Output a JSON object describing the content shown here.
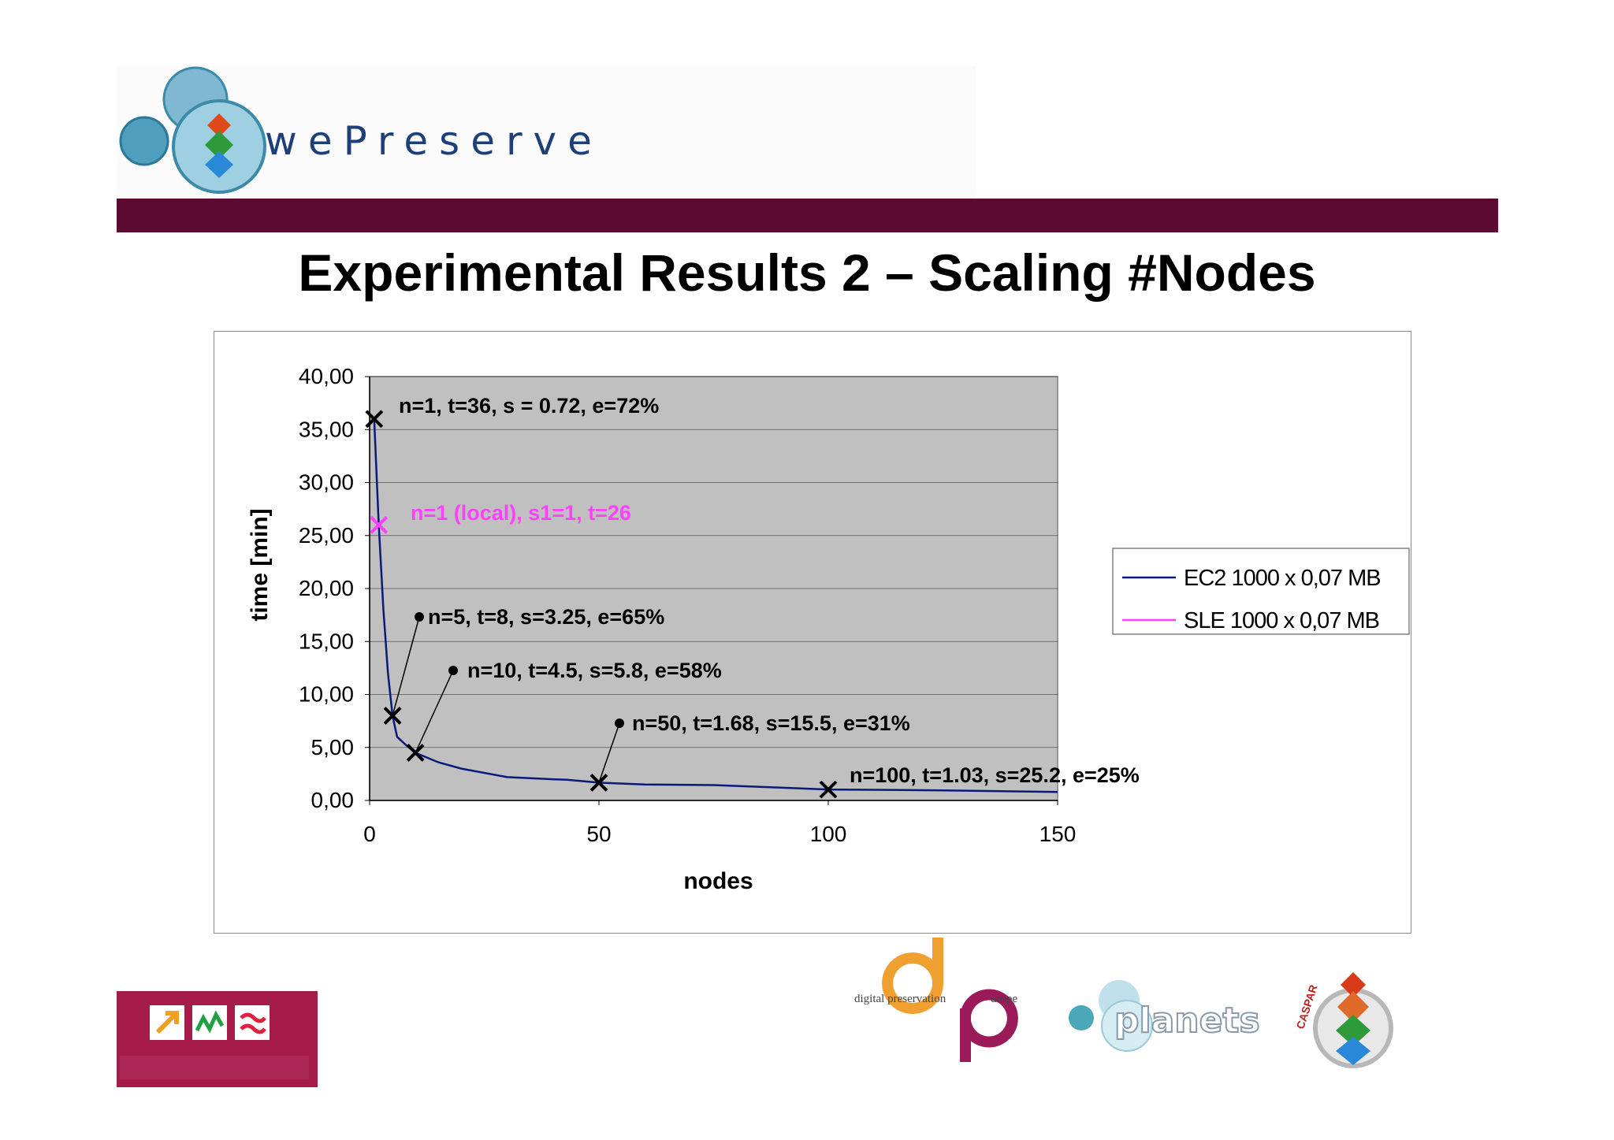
{
  "slide": {
    "brand": "wePreserve",
    "title": "Experimental Results 2 – Scaling #Nodes"
  },
  "colors": {
    "bar": "#5c0a32",
    "plot_bg": "#c0c0c0",
    "ec2": "#0a1a7a",
    "sle": "#ff40ff"
  },
  "chart_data": {
    "type": "line",
    "xlabel": "nodes",
    "ylabel": "time [min]",
    "xlim": [
      0,
      150
    ],
    "ylim": [
      0,
      40
    ],
    "x_ticks": [
      "0",
      "50",
      "100",
      "150"
    ],
    "y_ticks": [
      "0,00",
      "5,00",
      "10,00",
      "15,00",
      "20,00",
      "25,00",
      "30,00",
      "35,00",
      "40,00"
    ],
    "grid": true,
    "legend_position": "right",
    "series": [
      {
        "name": "EC2 1000 x 0,07 MB",
        "x": [
          1,
          2,
          3,
          4,
          5,
          6,
          8,
          10,
          15,
          20,
          30,
          40,
          43,
          50,
          60,
          75,
          100,
          125,
          150
        ],
        "y": [
          36,
          26,
          18,
          12,
          8,
          6,
          5.2,
          4.5,
          3.6,
          3.0,
          2.2,
          2.0,
          1.95,
          1.68,
          1.5,
          1.45,
          1.03,
          0.95,
          0.8
        ]
      },
      {
        "name": "SLE 1000 x 0,07 MB",
        "x": [
          1
        ],
        "y": [
          26
        ]
      }
    ],
    "annotations": [
      {
        "text": "n=1, t=36, s = 0.72, e=72%",
        "color": "black"
      },
      {
        "text": "n=1 (local), s1=1, t=26",
        "color": "magenta"
      },
      {
        "text": "n=5, t=8, s=3.25, e=65%",
        "color": "black"
      },
      {
        "text": "n=10, t=4.5, s=5.8, e=58%",
        "color": "black"
      },
      {
        "text": "n=50, t=1.68, s=15.5, e=31%",
        "color": "black"
      },
      {
        "text": "n=100, t=1.03, s=25.2, e=25%",
        "color": "black"
      }
    ]
  },
  "footer": {
    "dpe_text": "digital preservation",
    "dpe_text2": "urope",
    "planets_text": "planets",
    "caspar_text": "CASPAR"
  }
}
